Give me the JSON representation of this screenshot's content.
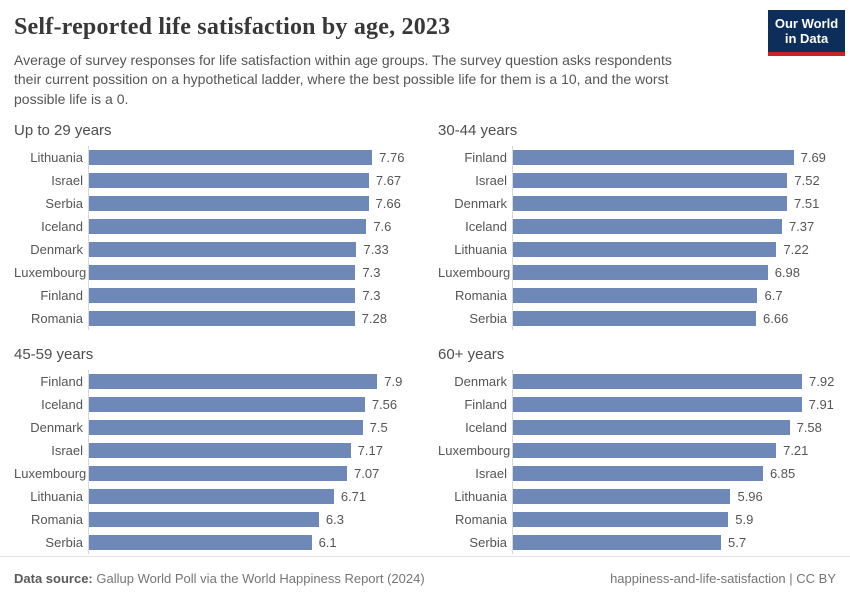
{
  "header": {
    "title": "Self-reported life satisfaction by age, 2023",
    "subtitle": "Average of survey responses for life satisfaction within age groups. The survey question asks respondents\ntheir current possition on a hypothetical ladder, where the best possible life for them is a 10, and the worst\npossible life is a 0.",
    "logo": {
      "line1": "Our World",
      "line2": "in Data"
    }
  },
  "chart_data": [
    {
      "type": "bar",
      "orientation": "horizontal",
      "title": "Up to 29 years",
      "categories": [
        "Lithuania",
        "Israel",
        "Serbia",
        "Iceland",
        "Denmark",
        "Luxembourg",
        "Finland",
        "Romania"
      ],
      "values": [
        7.76,
        7.67,
        7.66,
        7.6,
        7.33,
        7.3,
        7.3,
        7.28
      ],
      "xlim": [
        0,
        7.92
      ],
      "grid": false,
      "value_labels": true
    },
    {
      "type": "bar",
      "orientation": "horizontal",
      "title": "30-44 years",
      "categories": [
        "Finland",
        "Israel",
        "Denmark",
        "Iceland",
        "Lithuania",
        "Luxembourg",
        "Romania",
        "Serbia"
      ],
      "values": [
        7.69,
        7.52,
        7.51,
        7.37,
        7.22,
        6.98,
        6.7,
        6.66
      ],
      "xlim": [
        0,
        7.92
      ],
      "grid": false,
      "value_labels": true
    },
    {
      "type": "bar",
      "orientation": "horizontal",
      "title": "45-59 years",
      "categories": [
        "Finland",
        "Iceland",
        "Denmark",
        "Israel",
        "Luxembourg",
        "Lithuania",
        "Romania",
        "Serbia"
      ],
      "values": [
        7.9,
        7.56,
        7.5,
        7.17,
        7.07,
        6.71,
        6.3,
        6.1
      ],
      "xlim": [
        0,
        7.92
      ],
      "grid": false,
      "value_labels": true
    },
    {
      "type": "bar",
      "orientation": "horizontal",
      "title": "60+ years",
      "categories": [
        "Denmark",
        "Finland",
        "Iceland",
        "Luxembourg",
        "Israel",
        "Lithuania",
        "Romania",
        "Serbia"
      ],
      "values": [
        7.92,
        7.91,
        7.58,
        7.21,
        6.85,
        5.96,
        5.9,
        5.7
      ],
      "xlim": [
        0,
        7.92
      ],
      "grid": false,
      "value_labels": true
    }
  ],
  "footer": {
    "datasource_label": "Data source:",
    "datasource_text": "Gallup World Poll via the World Happiness Report (2024)",
    "right_text": "happiness-and-life-satisfaction | CC BY"
  },
  "colors": {
    "bar": "#6e88b8",
    "axis_line": "#d9d9d9",
    "logo_navy": "#0d2e5a",
    "logo_red": "#c82328",
    "text_gray": "#555555"
  }
}
